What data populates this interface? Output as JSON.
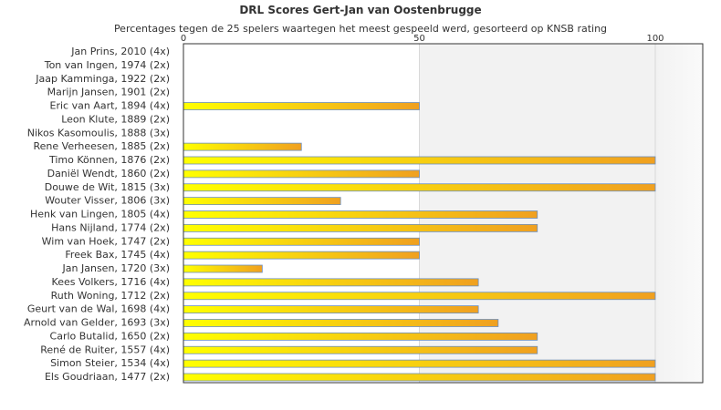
{
  "chart_data": {
    "type": "bar",
    "orientation": "horizontal",
    "title": "DRL Scores Gert-Jan van Oostenbrugge",
    "subtitle": "Percentages tegen de 25 spelers waartegen het meest gespeeld werd, gesorteerd op KNSB rating",
    "xlim": [
      0,
      100
    ],
    "x_ticks": [
      0,
      50,
      100
    ],
    "grid": true,
    "legend": "none",
    "categories": [
      "Jan Prins, 2010 (4x)",
      "Ton van Ingen, 1974 (2x)",
      "Jaap Kamminga, 1922 (2x)",
      "Marijn Jansen, 1901 (2x)",
      "Eric van Aart, 1894 (4x)",
      "Leon Klute, 1889 (2x)",
      "Nikos Kasomoulis, 1888 (3x)",
      "Rene Verheesen, 1885 (2x)",
      "Timo Können, 1876 (2x)",
      "Daniël Wendt, 1860 (2x)",
      "Douwe de Wit, 1815 (3x)",
      "Wouter Visser, 1806 (3x)",
      "Henk van Lingen, 1805 (4x)",
      "Hans Nijland, 1774 (2x)",
      "Wim van Hoek, 1747 (2x)",
      "Freek Bax, 1745 (4x)",
      "Jan Jansen, 1720 (3x)",
      "Kees Volkers, 1716 (4x)",
      "Ruth Woning, 1712 (2x)",
      "Geurt van de Wal, 1698 (4x)",
      "Arnold van Gelder, 1693 (3x)",
      "Carlo Butalid, 1650 (2x)",
      "René de Ruiter, 1557 (4x)",
      "Simon Steier, 1534 (4x)",
      "Els Goudriaan, 1477 (2x)"
    ],
    "values": [
      0,
      0,
      0,
      0,
      50,
      0,
      0,
      25,
      100,
      50,
      100,
      33.3,
      75,
      75,
      50,
      50,
      16.7,
      62.5,
      100,
      62.5,
      66.7,
      75,
      75,
      100,
      100
    ],
    "colors": {
      "bar_start": "#ffff00",
      "bar_end": "#f0a020",
      "bar_border": "#6b8fc0",
      "plot_bg": "#ffffff",
      "band_bg": "#f2f2f2",
      "band_bg_end": "#fafafa",
      "grid": "#d8d8d8",
      "frame": "#333333",
      "text": "#333333"
    }
  }
}
